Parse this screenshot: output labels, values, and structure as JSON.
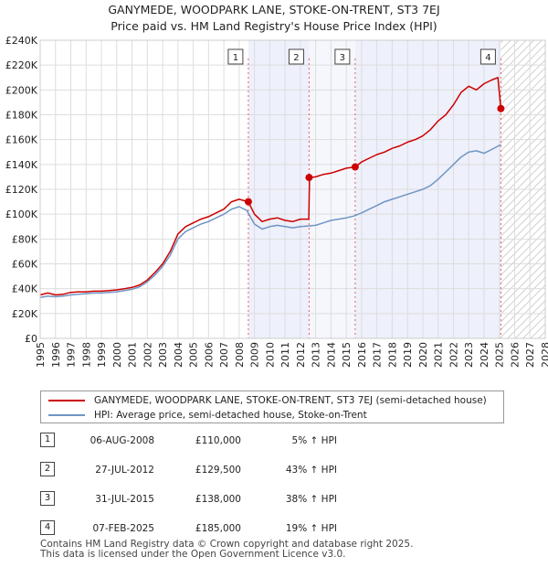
{
  "chart_data": {
    "type": "line",
    "title": "GANYMEDE, WOODPARK LANE, STOKE-ON-TRENT, ST3 7EJ",
    "subtitle": "Price paid vs. HM Land Registry's House Price Index (HPI)",
    "xlabel": "",
    "ylabel": "",
    "xlim": [
      1995,
      2028
    ],
    "ylim": [
      0,
      240000
    ],
    "y_ticks": [
      0,
      20000,
      40000,
      60000,
      80000,
      100000,
      120000,
      140000,
      160000,
      180000,
      200000,
      220000,
      240000
    ],
    "y_tick_labels": [
      "£0",
      "£20K",
      "£40K",
      "£60K",
      "£80K",
      "£100K",
      "£120K",
      "£140K",
      "£160K",
      "£180K",
      "£200K",
      "£220K",
      "£240K"
    ],
    "x_ticks": [
      1995,
      1996,
      1997,
      1998,
      1999,
      2000,
      2001,
      2002,
      2003,
      2004,
      2005,
      2006,
      2007,
      2008,
      2009,
      2010,
      2011,
      2012,
      2013,
      2014,
      2015,
      2016,
      2017,
      2018,
      2019,
      2020,
      2021,
      2022,
      2023,
      2024,
      2025,
      2026,
      2027,
      2028
    ],
    "x_tick_labels": [
      "1995",
      "1996",
      "1997",
      "1998",
      "1999",
      "2000",
      "2001",
      "2002",
      "2003",
      "2004",
      "2005",
      "2006",
      "2007",
      "2008",
      "2009",
      "2010",
      "2011",
      "2012",
      "2013",
      "2014",
      "2015",
      "2016",
      "2017",
      "2018",
      "2019",
      "2020",
      "2021",
      "2022",
      "2023",
      "2024",
      "2025",
      "2026",
      "2027",
      "2028"
    ],
    "grid": true,
    "future_hatch_start": 2025.1,
    "series": [
      {
        "name": "GANYMEDE, WOODPARK LANE, STOKE-ON-TRENT, ST3 7EJ (semi-detached house)",
        "color": "#cc0000",
        "x": [
          1995.0,
          1995.5,
          1996.0,
          1996.5,
          1997.0,
          1997.5,
          1998.0,
          1998.5,
          1999.0,
          1999.5,
          2000.0,
          2000.5,
          2001.0,
          2001.5,
          2002.0,
          2002.5,
          2003.0,
          2003.5,
          2004.0,
          2004.5,
          2005.0,
          2005.5,
          2006.0,
          2006.5,
          2007.0,
          2007.5,
          2008.0,
          2008.6,
          2009.0,
          2009.5,
          2010.0,
          2010.5,
          2011.0,
          2011.5,
          2012.0,
          2012.55,
          2012.6,
          2013.0,
          2013.5,
          2014.0,
          2014.5,
          2015.0,
          2015.58,
          2016.0,
          2016.5,
          2017.0,
          2017.5,
          2018.0,
          2018.5,
          2019.0,
          2019.5,
          2020.0,
          2020.5,
          2021.0,
          2021.5,
          2022.0,
          2022.5,
          2023.0,
          2023.5,
          2024.0,
          2024.5,
          2024.9,
          2025.1
        ],
        "values": [
          35000,
          36500,
          35000,
          35500,
          37000,
          37500,
          37500,
          38000,
          38000,
          38500,
          39000,
          40000,
          41000,
          43000,
          47000,
          53000,
          60000,
          70000,
          84000,
          90000,
          93000,
          96000,
          98000,
          101000,
          104000,
          110000,
          112000,
          110000,
          100000,
          94000,
          96000,
          97000,
          95000,
          94000,
          96000,
          96000,
          129500,
          130000,
          132000,
          133000,
          135000,
          137000,
          138000,
          142000,
          145000,
          148000,
          150000,
          153000,
          155000,
          158000,
          160000,
          163000,
          168000,
          175000,
          180000,
          188000,
          198000,
          203000,
          200000,
          205000,
          208000,
          210000,
          185000
        ]
      },
      {
        "name": "HPI: Average price, semi-detached house, Stoke-on-Trent",
        "color": "#6f95c4",
        "x": [
          1995.0,
          1995.5,
          1996.0,
          1996.5,
          1997.0,
          1997.5,
          1998.0,
          1998.5,
          1999.0,
          1999.5,
          2000.0,
          2000.5,
          2001.0,
          2001.5,
          2002.0,
          2002.5,
          2003.0,
          2003.5,
          2004.0,
          2004.5,
          2005.0,
          2005.5,
          2006.0,
          2006.5,
          2007.0,
          2007.5,
          2008.0,
          2008.5,
          2009.0,
          2009.5,
          2010.0,
          2010.5,
          2011.0,
          2011.5,
          2012.0,
          2012.5,
          2013.0,
          2013.5,
          2014.0,
          2014.5,
          2015.0,
          2015.5,
          2016.0,
          2016.5,
          2017.0,
          2017.5,
          2018.0,
          2018.5,
          2019.0,
          2019.5,
          2020.0,
          2020.5,
          2021.0,
          2021.5,
          2022.0,
          2022.5,
          2023.0,
          2023.5,
          2024.0,
          2024.5,
          2025.1
        ],
        "values": [
          33000,
          34000,
          33500,
          34000,
          35000,
          35500,
          36000,
          36500,
          36500,
          37000,
          37500,
          38500,
          39500,
          41500,
          45500,
          51000,
          58000,
          67000,
          80000,
          86000,
          89000,
          92000,
          94000,
          97000,
          100000,
          104000,
          106000,
          103000,
          92000,
          88000,
          90000,
          91000,
          90000,
          89000,
          90000,
          90500,
          91000,
          93000,
          95000,
          96000,
          97000,
          98500,
          101000,
          104000,
          107000,
          110000,
          112000,
          114000,
          116000,
          118000,
          120000,
          123000,
          128000,
          134000,
          140000,
          146000,
          150000,
          151000,
          149000,
          152000,
          156000
        ]
      }
    ],
    "sales": [
      {
        "label": "1",
        "date": "06-AUG-2008",
        "x": 2008.6,
        "price": "£110,000",
        "value": 110000,
        "hpi": "5% ↑ HPI"
      },
      {
        "label": "2",
        "date": "27-JUL-2012",
        "x": 2012.57,
        "price": "£129,500",
        "value": 129500,
        "hpi": "43% ↑ HPI"
      },
      {
        "label": "3",
        "date": "31-JUL-2015",
        "x": 2015.58,
        "price": "£138,000",
        "value": 138000,
        "hpi": "38% ↑ HPI"
      },
      {
        "label": "4",
        "date": "07-FEB-2025",
        "x": 2025.1,
        "price": "£185,000",
        "value": 185000,
        "hpi": "19% ↑ HPI"
      }
    ],
    "footer": [
      "Contains HM Land Registry data © Crown copyright and database right 2025.",
      "This data is licensed under the Open Government Licence v3.0."
    ]
  }
}
